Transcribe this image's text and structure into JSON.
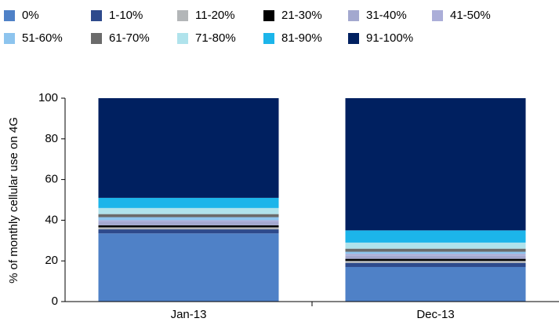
{
  "chart_data": {
    "type": "stacked_bar",
    "y_label": "% of monthly cellular use on 4G",
    "categories": [
      "Jan-13",
      "Dec-13"
    ],
    "series": [
      {
        "name": "0%",
        "color": "#4f81c7",
        "values": [
          33.5,
          17
        ]
      },
      {
        "name": "1-10%",
        "color": "#2e4a8c",
        "values": [
          2,
          2
        ]
      },
      {
        "name": "11-20%",
        "color": "#b3b6b8",
        "values": [
          1,
          1
        ]
      },
      {
        "name": "21-30%",
        "color": "#000000",
        "values": [
          1,
          1
        ]
      },
      {
        "name": "31-40%",
        "color": "#a3a8cf",
        "values": [
          1.5,
          1.5
        ]
      },
      {
        "name": "41-50%",
        "color": "#abaed8",
        "values": [
          1,
          1
        ]
      },
      {
        "name": "51-60%",
        "color": "#8dc4ee",
        "values": [
          1.5,
          1
        ]
      },
      {
        "name": "61-70%",
        "color": "#6b6b6b",
        "values": [
          1.5,
          1.5
        ]
      },
      {
        "name": "71-80%",
        "color": "#b0e3ec",
        "values": [
          3,
          3
        ]
      },
      {
        "name": "81-90%",
        "color": "#1cb5ea",
        "values": [
          5,
          6
        ]
      },
      {
        "name": "91-100%",
        "color": "#002060",
        "values": [
          49,
          65
        ]
      }
    ],
    "ylim": [
      0,
      100
    ],
    "yticks": [
      0,
      20,
      40,
      60,
      80,
      100
    ],
    "grid": false
  }
}
